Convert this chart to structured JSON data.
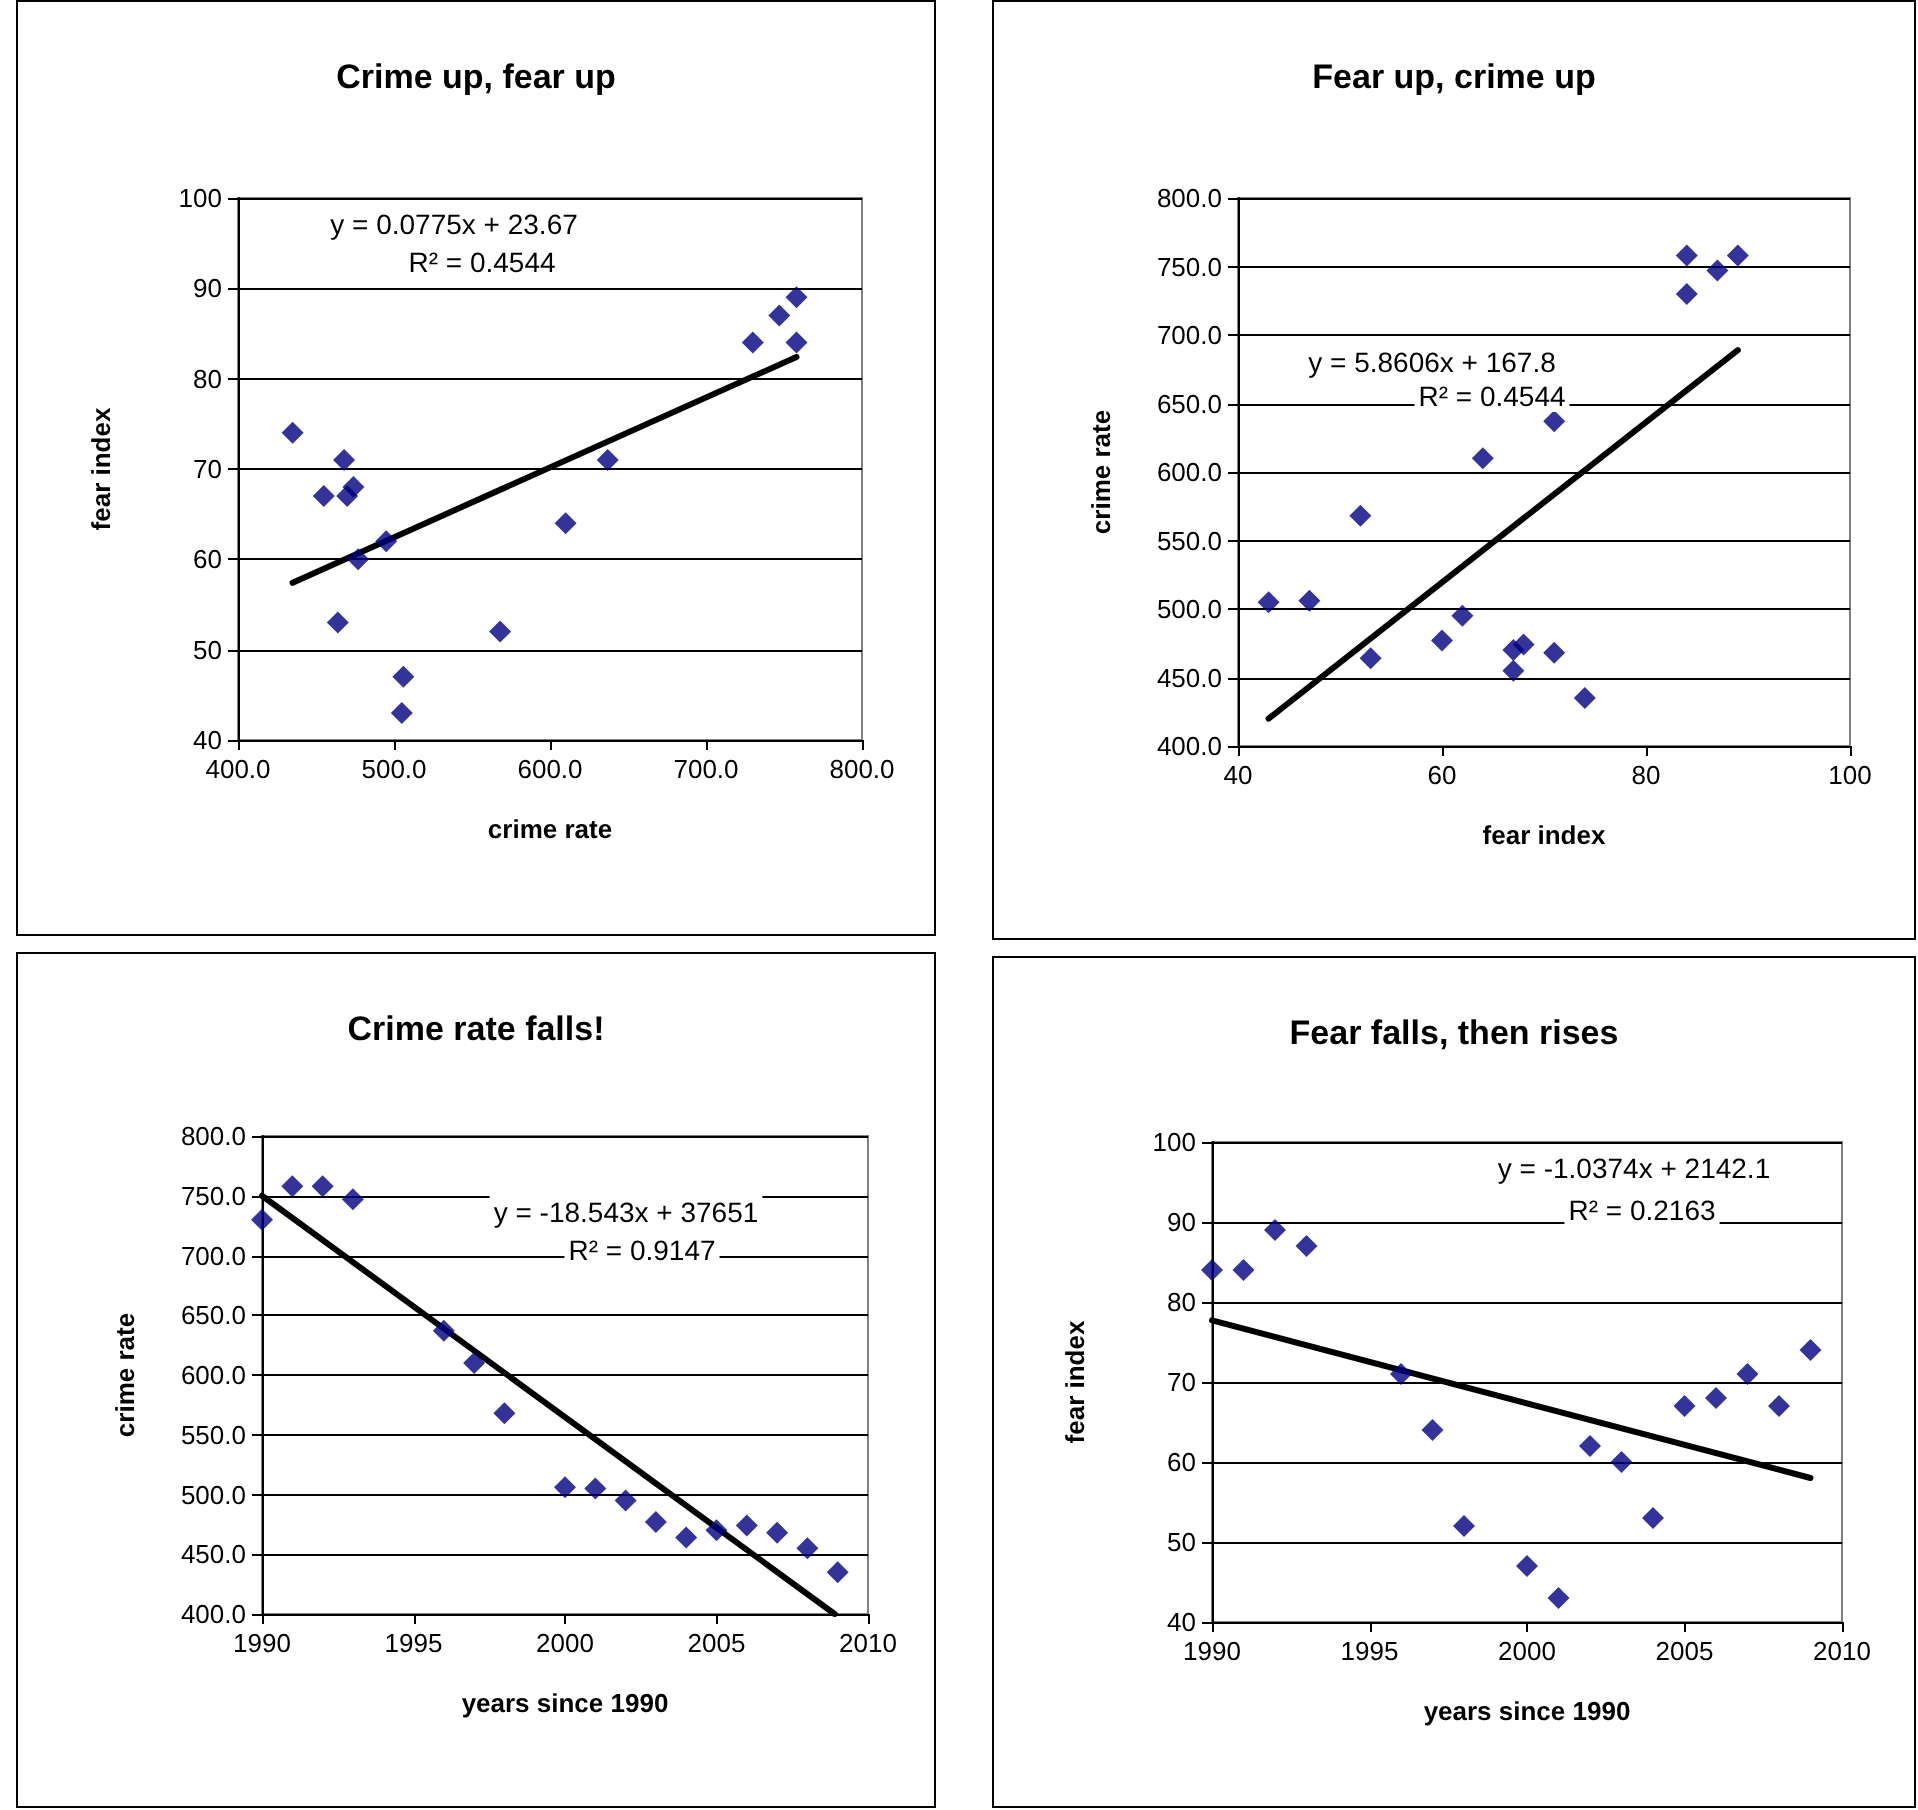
{
  "chart_data": [
    {
      "type": "scatter",
      "title": "Crime up, fear up",
      "xlabel": "crime rate",
      "ylabel": "fear index",
      "marker": "diamond",
      "grid": "y",
      "xlim": [
        400,
        800
      ],
      "xticks": [
        {
          "value": 400,
          "label": "400.0"
        },
        {
          "value": 500,
          "label": "500.0"
        },
        {
          "value": 600,
          "label": "600.0"
        },
        {
          "value": 700,
          "label": "700.0"
        },
        {
          "value": 800,
          "label": "800.0"
        }
      ],
      "ylim": [
        40,
        100
      ],
      "yticks": [
        40,
        50,
        60,
        70,
        80,
        90,
        100
      ],
      "annotations": [
        "y = 0.0775x + 23.67",
        "R² = 0.4544"
      ],
      "series": [
        {
          "color": "#000080",
          "x": [
            730,
            758,
            758,
            747,
            637,
            610,
            568,
            506,
            505,
            495,
            477,
            464,
            470,
            474,
            468,
            455,
            435
          ],
          "values": [
            84,
            84,
            89,
            87,
            71,
            64,
            52,
            47,
            43,
            62,
            60,
            53,
            67,
            68,
            71,
            67,
            74
          ]
        },
        {
          "type": "line",
          "marker": "none",
          "color": "#000000",
          "x": [
            435,
            758
          ],
          "values": [
            57.4,
            82.4
          ]
        }
      ]
    },
    {
      "type": "scatter",
      "title": "Fear up, crime up",
      "xlabel": "fear index",
      "ylabel": "crime rate",
      "marker": "diamond",
      "grid": "y",
      "xlim": [
        40,
        100
      ],
      "xticks": [
        40,
        60,
        80,
        100
      ],
      "ylim": [
        400,
        800
      ],
      "yticks": [
        {
          "value": 400,
          "label": "400.0"
        },
        {
          "value": 450,
          "label": "450.0"
        },
        {
          "value": 500,
          "label": "500.0"
        },
        {
          "value": 550,
          "label": "550.0"
        },
        {
          "value": 600,
          "label": "600.0"
        },
        {
          "value": 650,
          "label": "650.0"
        },
        {
          "value": 700,
          "label": "700.0"
        },
        {
          "value": 750,
          "label": "750.0"
        },
        {
          "value": 800,
          "label": "800.0"
        }
      ],
      "annotations": [
        "y = 5.8606x + 167.8",
        "R² = 0.4544"
      ],
      "series": [
        {
          "color": "#000080",
          "x": [
            84,
            84,
            89,
            87,
            71,
            64,
            52,
            47,
            43,
            62,
            60,
            53,
            67,
            68,
            71,
            67,
            74
          ],
          "values": [
            730,
            758,
            758,
            747,
            637,
            610,
            568,
            506,
            505,
            495,
            477,
            464,
            470,
            474,
            468,
            455,
            435
          ]
        },
        {
          "type": "line",
          "marker": "none",
          "color": "#000000",
          "x": [
            43,
            89
          ],
          "values": [
            420,
            689
          ]
        }
      ]
    },
    {
      "type": "scatter",
      "title": "Crime rate falls!",
      "xlabel": "years since 1990",
      "ylabel": "crime rate",
      "marker": "diamond",
      "grid": "y",
      "xlim": [
        1990,
        2010
      ],
      "xticks": [
        1990,
        1995,
        2000,
        2005,
        2010
      ],
      "ylim": [
        400,
        800
      ],
      "yticks": [
        {
          "value": 400,
          "label": "400.0"
        },
        {
          "value": 450,
          "label": "450.0"
        },
        {
          "value": 500,
          "label": "500.0"
        },
        {
          "value": 550,
          "label": "550.0"
        },
        {
          "value": 600,
          "label": "600.0"
        },
        {
          "value": 650,
          "label": "650.0"
        },
        {
          "value": 700,
          "label": "700.0"
        },
        {
          "value": 750,
          "label": "750.0"
        },
        {
          "value": 800,
          "label": "800.0"
        }
      ],
      "annotations": [
        "y = -18.543x + 37651",
        "R² = 0.9147"
      ],
      "series": [
        {
          "color": "#000080",
          "x": [
            1990,
            1991,
            1992,
            1993,
            1996,
            1997,
            1998,
            2000,
            2001,
            2002,
            2003,
            2004,
            2005,
            2006,
            2007,
            2008,
            2009
          ],
          "values": [
            730,
            758,
            758,
            747,
            637,
            610,
            568,
            506,
            505,
            495,
            477,
            464,
            470,
            474,
            468,
            455,
            435
          ]
        },
        {
          "type": "line",
          "marker": "none",
          "color": "#000000",
          "x": [
            1990,
            2008.9
          ],
          "values": [
            750,
            400
          ]
        }
      ]
    },
    {
      "type": "scatter",
      "title": "Fear falls, then rises",
      "xlabel": "years since 1990",
      "ylabel": "fear index",
      "marker": "diamond",
      "grid": "y",
      "xlim": [
        1990,
        2010
      ],
      "xticks": [
        1990,
        1995,
        2000,
        2005,
        2010
      ],
      "ylim": [
        40,
        100
      ],
      "yticks": [
        40,
        50,
        60,
        70,
        80,
        90,
        100
      ],
      "annotations": [
        "y = -1.0374x + 2142.1",
        "R² = 0.2163"
      ],
      "series": [
        {
          "color": "#000080",
          "x": [
            1990,
            1991,
            1992,
            1993,
            1996,
            1997,
            1998,
            2000,
            2001,
            2002,
            2003,
            2004,
            2005,
            2006,
            2007,
            2008,
            2009
          ],
          "values": [
            84,
            84,
            89,
            87,
            71,
            64,
            52,
            47,
            43,
            62,
            60,
            53,
            67,
            68,
            71,
            67,
            74
          ]
        },
        {
          "type": "line",
          "marker": "none",
          "color": "#000000",
          "x": [
            1990,
            2009
          ],
          "values": [
            77.7,
            58.0
          ]
        }
      ]
    }
  ]
}
